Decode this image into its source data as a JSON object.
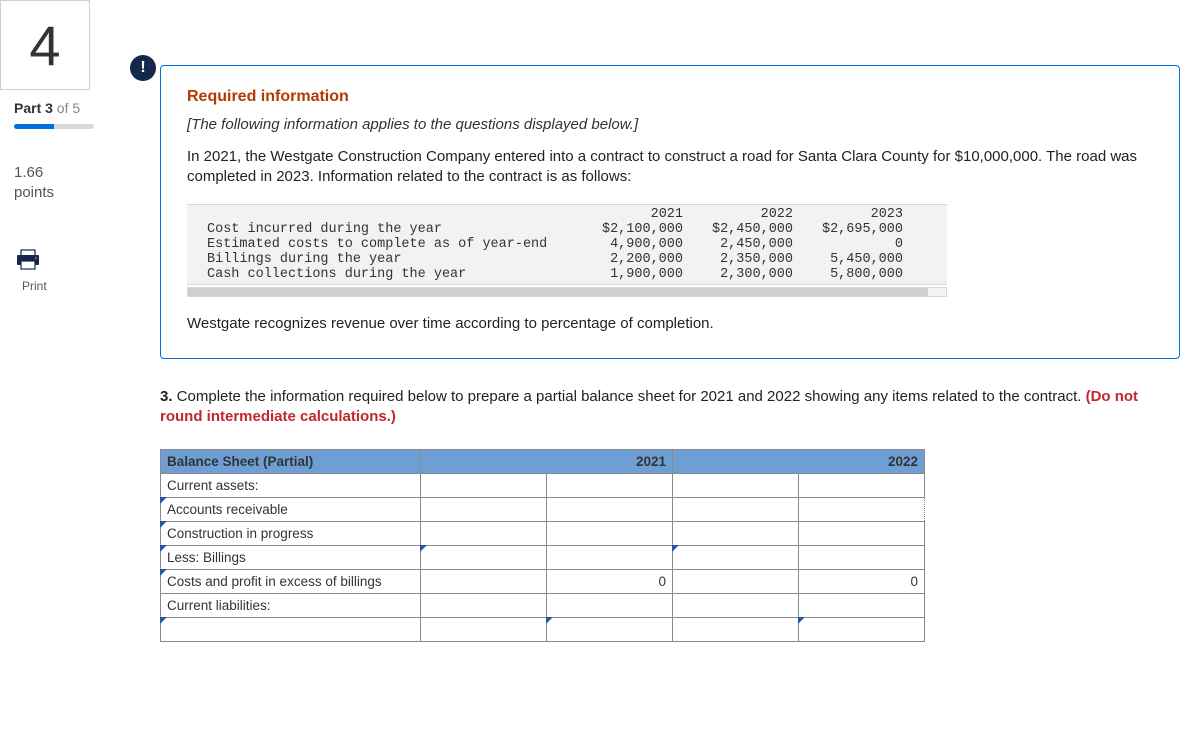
{
  "sidebar": {
    "question_number": "4",
    "part_label_prefix": "Part 3",
    "part_label_suffix": " of 5",
    "progress_pct": 50,
    "points_value": "1.66",
    "points_label": "points",
    "print_label": "Print"
  },
  "alert_icon": "!",
  "info": {
    "required_title": "Required information",
    "applies_text": "[The following information applies to the questions displayed below.]",
    "narrative": "In 2021, the Westgate Construction Company entered into a contract to construct a road for Santa Clara County for $10,000,000. The road was completed in 2023. Information related to the contract is as follows:",
    "revenue_note": "Westgate recognizes revenue over time according to percentage of completion."
  },
  "data_table": {
    "headers": [
      "",
      "2021",
      "2022",
      "2023"
    ],
    "rows": [
      {
        "label": "Cost incurred during the year",
        "y1": "$2,100,000",
        "y2": "$2,450,000",
        "y3": "$2,695,000"
      },
      {
        "label": "Estimated costs to complete as of year-end",
        "y1": "4,900,000",
        "y2": "2,450,000",
        "y3": "0"
      },
      {
        "label": "Billings during the year",
        "y1": "2,200,000",
        "y2": "2,350,000",
        "y3": "5,450,000"
      },
      {
        "label": "Cash collections during the year",
        "y1": "1,900,000",
        "y2": "2,300,000",
        "y3": "5,800,000"
      }
    ],
    "bg_color": "#f2f2f2",
    "font": "monospace"
  },
  "q3": {
    "number": "3.",
    "text": " Complete the information required below to prepare a partial balance sheet for 2021 and 2022 showing any items related to the contract. ",
    "instruction": "(Do not round intermediate calculations.)"
  },
  "balance_sheet": {
    "title": "Balance Sheet (Partial)",
    "year1": "2021",
    "year2": "2022",
    "rows": [
      {
        "label": "Current assets:",
        "y1a": "",
        "y1b": "",
        "y2a": "",
        "y2b": ""
      },
      {
        "label": "Accounts receivable",
        "y1a": "",
        "y1b": "",
        "y2a": "",
        "y2b": ""
      },
      {
        "label": "Construction in progress",
        "y1a": "",
        "y1b": "",
        "y2a": "",
        "y2b": ""
      },
      {
        "label": "Less: Billings",
        "y1a": "",
        "y1b": "",
        "y2a": "",
        "y2b": ""
      },
      {
        "label": "Costs and profit in excess of billings",
        "y1a": "",
        "y1b": "0",
        "y2a": "",
        "y2b": "0"
      },
      {
        "label": "Current liabilities:",
        "y1a": "",
        "y1b": "",
        "y2a": "",
        "y2b": ""
      },
      {
        "label": "",
        "y1a": "",
        "y1b": "",
        "y2a": "",
        "y2b": ""
      }
    ],
    "header_bg": "#6e9fd4",
    "border_color": "#8a8a8a"
  }
}
